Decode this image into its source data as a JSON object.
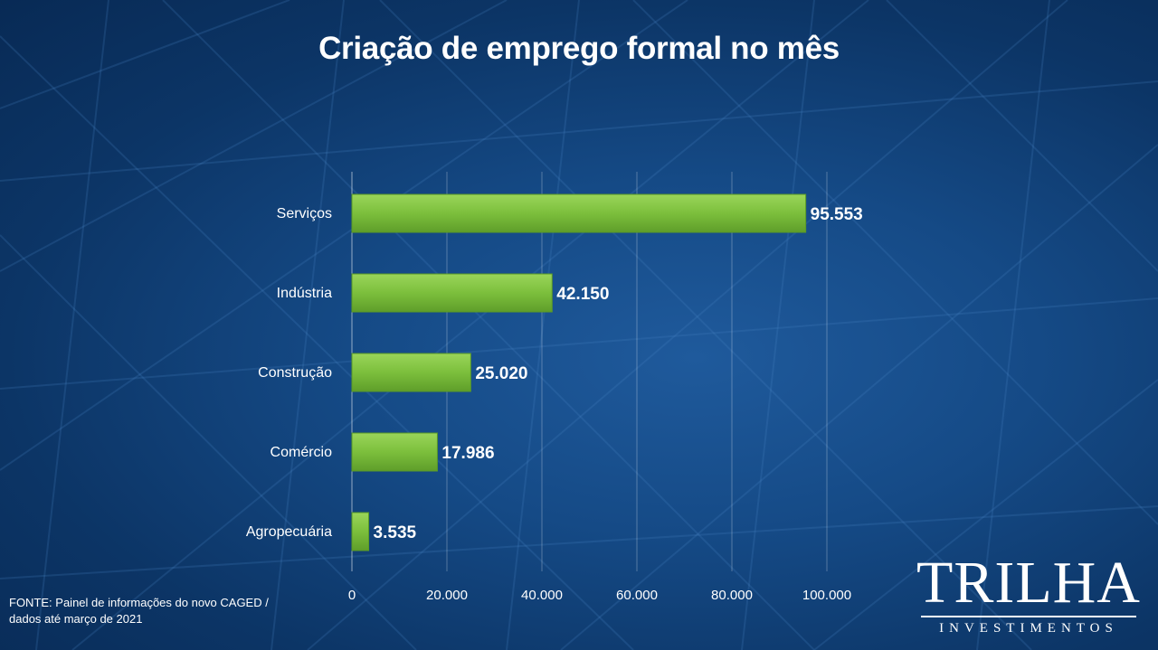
{
  "title": "Criação de emprego formal no mês",
  "chart_data": {
    "type": "bar",
    "orientation": "horizontal",
    "categories": [
      "Serviços",
      "Indústria",
      "Construção",
      "Comércio",
      "Agropecuária"
    ],
    "values": [
      95553,
      42150,
      25020,
      17986,
      3535
    ],
    "value_labels": [
      "95.553",
      "42.150",
      "25.020",
      "17.986",
      "3.535"
    ],
    "xlim": [
      0,
      100000
    ],
    "xticks": [
      0,
      20000,
      40000,
      60000,
      80000,
      100000
    ],
    "xtick_labels": [
      "0",
      "20.000",
      "40.000",
      "60.000",
      "80.000",
      "100.000"
    ],
    "bar_color": "#7cbf3c",
    "gridlines": true
  },
  "source": {
    "line1": "FONTE: Painel de informações do novo CAGED /",
    "line2": "dados até março de 2021"
  },
  "logo": {
    "name": "TRILHA",
    "subtitle": "INVESTIMENTOS"
  }
}
